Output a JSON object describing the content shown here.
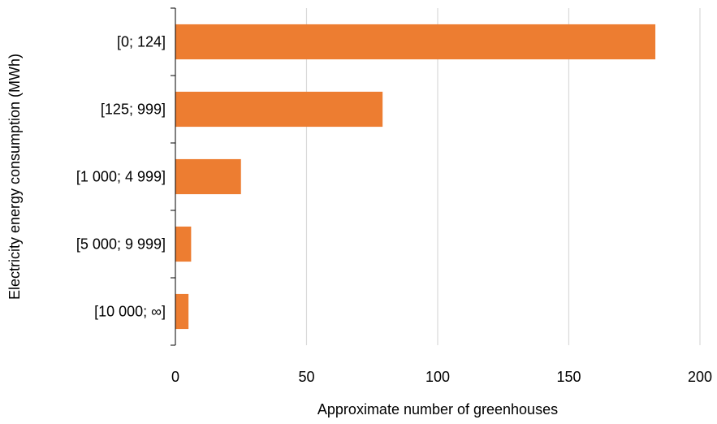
{
  "chart_data": {
    "type": "bar",
    "orientation": "horizontal",
    "title": "",
    "xlabel": "Approximate number of greenhouses",
    "ylabel": "Electricity energy consumption (MWh)",
    "categories": [
      "[0; 124]",
      "[125; 999]",
      "[1 000; 4 999]",
      "[5 000; 9 999]",
      "[10 000; ∞]"
    ],
    "values": [
      183,
      79,
      25,
      6,
      5
    ],
    "xlim": [
      0,
      200
    ],
    "xticks": [
      "0",
      "50",
      "100",
      "150",
      "200"
    ],
    "grid": true,
    "legend": "none",
    "bar_color": "#ED7D31",
    "grid_color": "#D9D9D9"
  }
}
